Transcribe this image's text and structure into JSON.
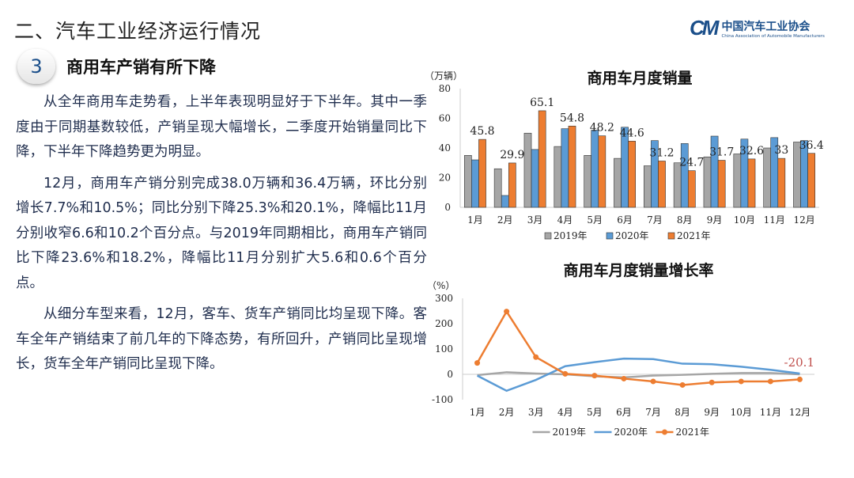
{
  "header": {
    "title": "二、汽车工业经济运行情况",
    "logo_cn": "中国汽车工业协会",
    "logo_en": "China Association of Automobile Manufacturers",
    "logo_mark": "CM"
  },
  "section": {
    "number": "3",
    "title": "商用车产销有所下降"
  },
  "paragraphs": [
    "从全年商用车走势看，上半年表现明显好于下半年。其中一季度由于同期基数较低，产销呈现大幅增长，二季度开始销量同比下降，下半年下降趋势更为明显。",
    "12月，商用车产销分别完成38.0万辆和36.4万辆，环比分别增长7.7%和10.5%；同比分别下降25.3%和20.1%，降幅比11月分别收窄6.6和10.2个百分点。与2019年同期相比，商用车产销同比下降23.6%和18.2%，降幅比11月分别扩大5.6和0.6个百分点。",
    "从细分车型来看，12月，客车、货车产销同比均呈现下降。客车全年产销结束了前几年的下降态势，有所回升，产销同比呈现增长，货车全年产销同比呈现下降。"
  ],
  "chart_data": [
    {
      "type": "bar",
      "title": "商用车月度销量",
      "ylabel": "（万辆）",
      "ylim": [
        0,
        80
      ],
      "yticks": [
        0,
        20,
        40,
        60,
        80
      ],
      "legend": "bottom",
      "categories": [
        "1月",
        "2月",
        "3月",
        "4月",
        "5月",
        "6月",
        "7月",
        "8月",
        "9月",
        "10月",
        "11月",
        "12月"
      ],
      "series": [
        {
          "name": "2019年",
          "color": "#a6a6a6",
          "values": [
            35,
            26,
            50,
            41,
            35,
            33,
            28,
            30,
            34,
            36,
            40,
            44
          ]
        },
        {
          "name": "2020年",
          "color": "#5b9bd5",
          "values": [
            32,
            8,
            39,
            53,
            52,
            54,
            45,
            43,
            48,
            46,
            47,
            45
          ]
        },
        {
          "name": "2021年",
          "color": "#ed7d31",
          "values": [
            45.8,
            29.9,
            65.1,
            54.8,
            48.2,
            44.6,
            31.2,
            24.7,
            31.7,
            32.6,
            33,
            36.4
          ],
          "labels": [
            "45.8",
            "29.9",
            "65.1",
            "54.8",
            "48.2",
            "44.6",
            "31.2",
            "24.7",
            "31.7",
            "32.6",
            "33",
            "36.4"
          ]
        }
      ]
    },
    {
      "type": "line",
      "title": "商用车月度销量增长率",
      "ylabel": "（%）",
      "ylim": [
        -100,
        300
      ],
      "yticks": [
        -100,
        0,
        100,
        200,
        300
      ],
      "legend": "bottom",
      "categories": [
        "1月",
        "2月",
        "3月",
        "4月",
        "5月",
        "6月",
        "7月",
        "8月",
        "9月",
        "10月",
        "11月",
        "12月"
      ],
      "annotation": "-20.1",
      "annotation_color": "#c0504d",
      "series": [
        {
          "name": "2019年",
          "color": "#a6a6a6",
          "values": [
            -3,
            8,
            3,
            0,
            -8,
            -12,
            -5,
            -2,
            2,
            5,
            5,
            0
          ]
        },
        {
          "name": "2020年",
          "color": "#5b9bd5",
          "values": [
            -5,
            -65,
            -22,
            32,
            48,
            62,
            60,
            42,
            40,
            30,
            18,
            3
          ]
        },
        {
          "name": "2021年",
          "color": "#ed7d31",
          "values": [
            45,
            248,
            68,
            2,
            -5,
            -17,
            -28,
            -42,
            -32,
            -28,
            -28,
            -20.1
          ],
          "markers": true
        }
      ]
    }
  ]
}
